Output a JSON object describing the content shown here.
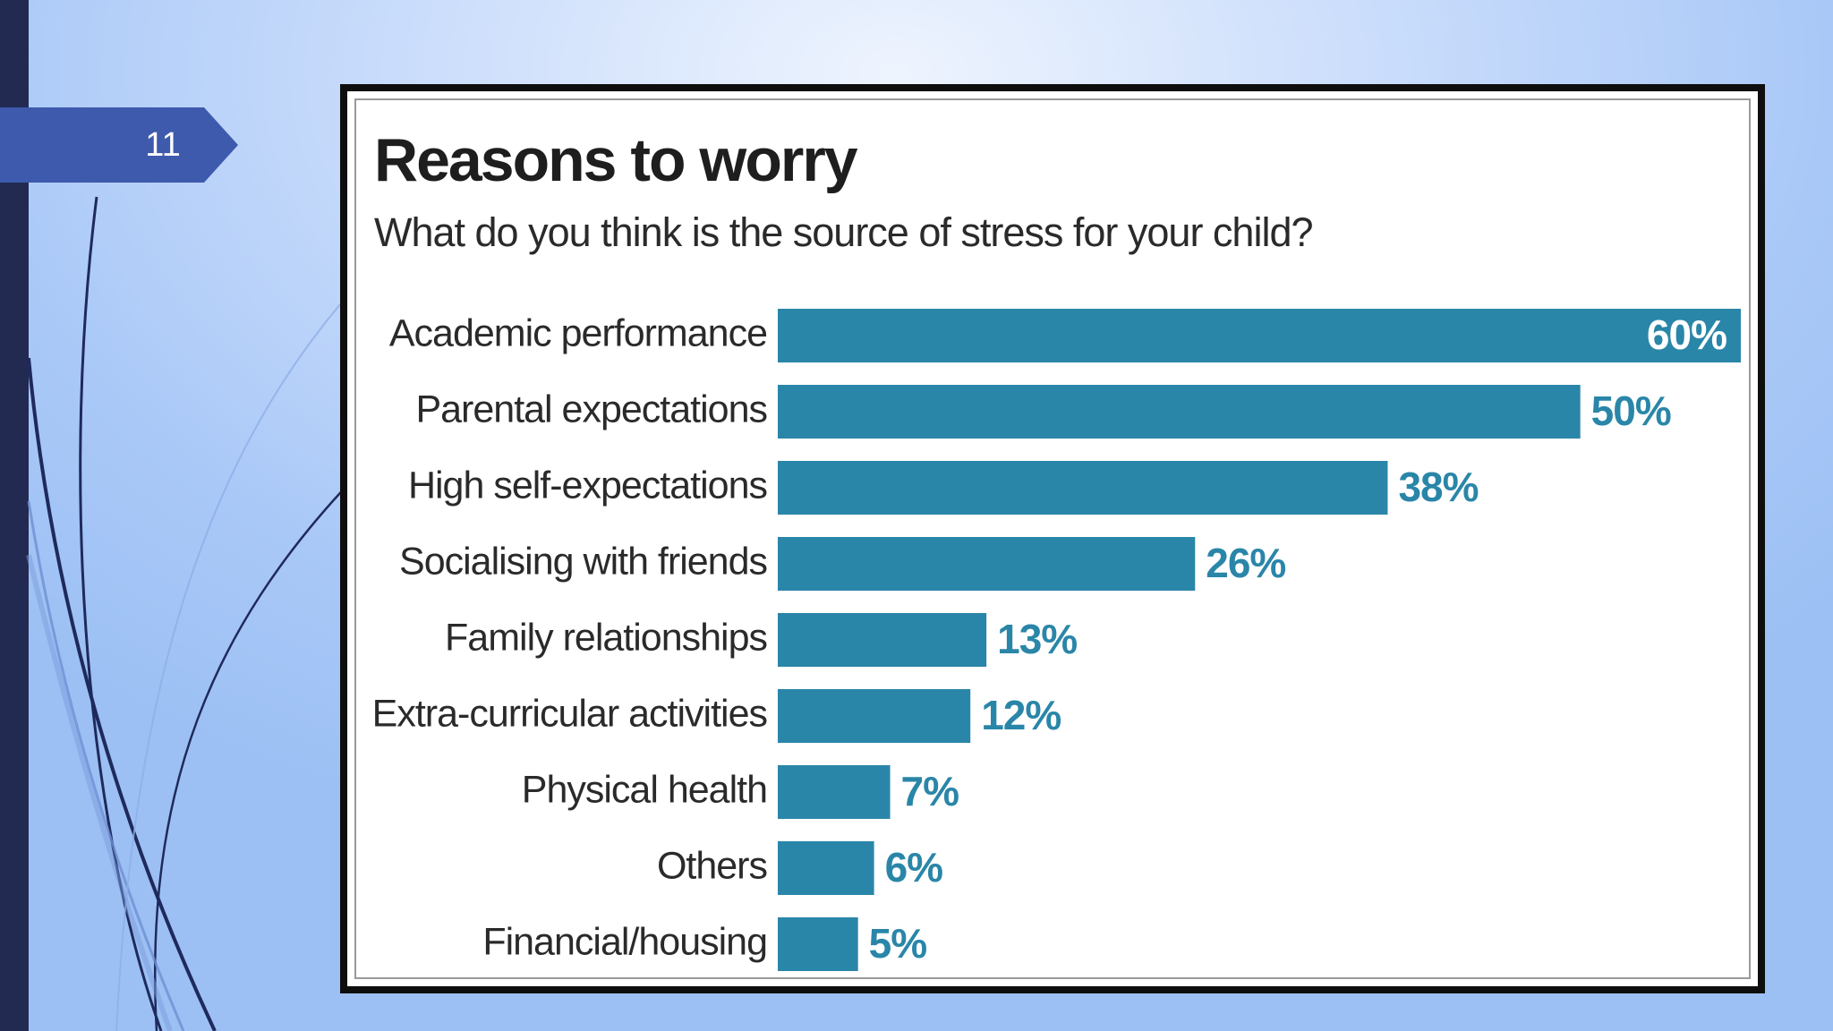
{
  "slide": {
    "number": "11"
  },
  "colors": {
    "bar": "#2a86a8",
    "value_label": "#2a86a8",
    "value_label_inside": "#ffffff",
    "category_label": "#2a2a2a"
  },
  "chart_data": {
    "type": "bar",
    "orientation": "horizontal",
    "title": "Reasons to worry",
    "subtitle": "What do you think is the source of stress for your child?",
    "categories": [
      "Academic performance",
      "Parental expectations",
      "High self-expectations",
      "Socialising with friends",
      "Family relationships",
      "Extra-curricular activities",
      "Physical health",
      "Others",
      "Financial/housing"
    ],
    "values": [
      60,
      50,
      38,
      26,
      13,
      12,
      7,
      6,
      5
    ],
    "value_labels": [
      "60%",
      "50%",
      "38%",
      "26%",
      "13%",
      "12%",
      "7%",
      "6%",
      "5%"
    ],
    "xlim": [
      0,
      60
    ],
    "grid": false,
    "legend": "none"
  }
}
